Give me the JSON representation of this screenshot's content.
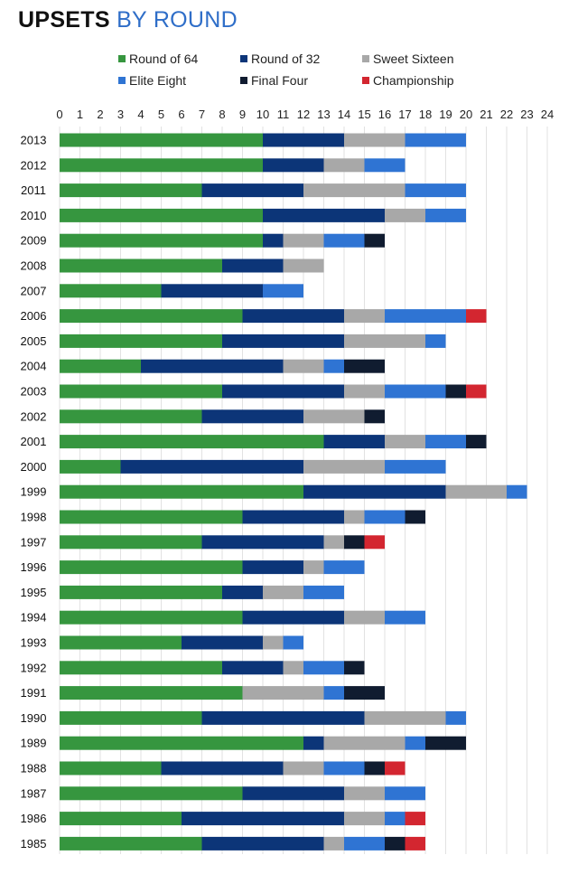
{
  "chart_data": {
    "type": "bar",
    "orientation": "horizontal",
    "stacked": true,
    "title_bold": "UPSETS",
    "title_rest": "BY ROUND",
    "xlim": [
      0,
      24
    ],
    "xticks": [
      0,
      1,
      2,
      3,
      4,
      5,
      6,
      7,
      8,
      9,
      10,
      11,
      12,
      13,
      14,
      15,
      16,
      17,
      18,
      19,
      20,
      21,
      22,
      23,
      24
    ],
    "grid": true,
    "legend_position": "top",
    "categories": [
      "2013",
      "2012",
      "2011",
      "2010",
      "2009",
      "2008",
      "2007",
      "2006",
      "2005",
      "2004",
      "2003",
      "2002",
      "2001",
      "2000",
      "1999",
      "1998",
      "1997",
      "1996",
      "1995",
      "1994",
      "1993",
      "1992",
      "1991",
      "1990",
      "1989",
      "1988",
      "1987",
      "1986",
      "1985"
    ],
    "series": [
      {
        "name": "Round of 64",
        "color": "#36963f",
        "values": [
          10,
          10,
          7,
          10,
          10,
          8,
          5,
          9,
          8,
          4,
          8,
          7,
          13,
          3,
          12,
          9,
          7,
          9,
          8,
          9,
          6,
          8,
          9,
          7,
          12,
          5,
          9,
          6,
          7
        ]
      },
      {
        "name": "Round of 32",
        "color": "#0c3578",
        "values": [
          4,
          3,
          5,
          6,
          1,
          3,
          5,
          5,
          6,
          7,
          6,
          5,
          3,
          9,
          7,
          5,
          6,
          3,
          2,
          5,
          4,
          3,
          0,
          8,
          1,
          6,
          5,
          8,
          6
        ]
      },
      {
        "name": "Sweet Sixteen",
        "color": "#a8a8a8",
        "values": [
          3,
          2,
          5,
          2,
          2,
          2,
          0,
          2,
          4,
          2,
          2,
          3,
          2,
          4,
          3,
          1,
          1,
          1,
          2,
          2,
          1,
          1,
          4,
          4,
          4,
          2,
          2,
          2,
          1
        ]
      },
      {
        "name": "Elite Eight",
        "color": "#2f74d3",
        "values": [
          3,
          2,
          3,
          2,
          2,
          0,
          2,
          4,
          1,
          1,
          3,
          0,
          2,
          3,
          1,
          2,
          0,
          2,
          2,
          2,
          1,
          2,
          1,
          1,
          1,
          2,
          2,
          1,
          2
        ]
      },
      {
        "name": "Final Four",
        "color": "#101c30",
        "values": [
          0,
          0,
          0,
          0,
          1,
          0,
          0,
          0,
          0,
          2,
          1,
          1,
          1,
          0,
          0,
          1,
          1,
          0,
          0,
          0,
          0,
          1,
          2,
          0,
          2,
          1,
          0,
          0,
          1
        ]
      },
      {
        "name": "Championship",
        "color": "#d32630",
        "values": [
          0,
          0,
          0,
          0,
          0,
          0,
          0,
          1,
          0,
          0,
          1,
          0,
          0,
          0,
          0,
          0,
          1,
          0,
          0,
          0,
          0,
          0,
          0,
          0,
          0,
          1,
          0,
          1,
          1
        ]
      }
    ]
  }
}
